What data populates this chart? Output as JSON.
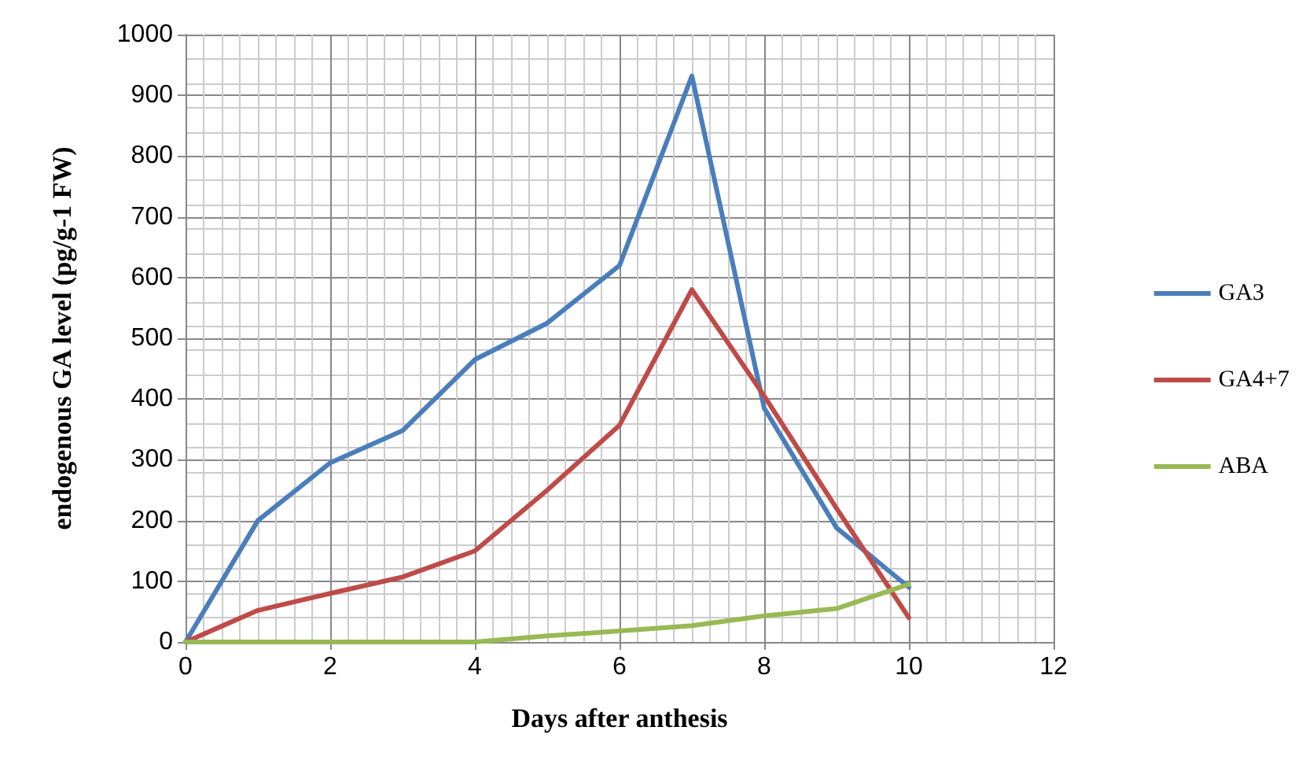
{
  "chart_data": {
    "type": "line",
    "xlabel": "Days after anthesis",
    "ylabel": "endogenous GA level (pg/g-1 FW)",
    "x": [
      0,
      1,
      2,
      3,
      4,
      5,
      6,
      7,
      8,
      9,
      10
    ],
    "series": [
      {
        "name": "GA3",
        "color": "#4a7ebb",
        "values": [
          0,
          200,
          295,
          348,
          465,
          525,
          620,
          932,
          385,
          188,
          90
        ]
      },
      {
        "name": "GA4+7",
        "color": "#be4b48",
        "values": [
          0,
          52,
          80,
          107,
          150,
          250,
          357,
          580,
          405,
          220,
          40
        ]
      },
      {
        "name": "ABA",
        "color": "#98b954",
        "values": [
          0,
          0,
          0,
          0,
          0,
          10,
          18,
          27,
          43,
          55,
          95
        ]
      }
    ],
    "xlim": [
      0,
      12
    ],
    "xticks": [
      0,
      2,
      4,
      6,
      8,
      10,
      12
    ],
    "ylim": [
      0,
      1000
    ],
    "yticks": [
      0,
      100,
      200,
      300,
      400,
      500,
      600,
      700,
      800,
      900,
      1000
    ],
    "grid": true,
    "legend": "right",
    "marker": "none",
    "line_style": "solid"
  }
}
